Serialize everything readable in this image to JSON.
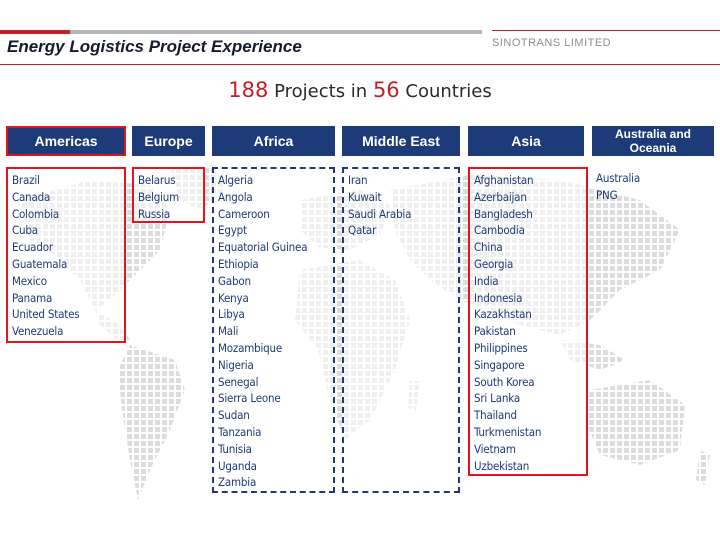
{
  "header": {
    "title": "Energy Logistics Project Experience",
    "company": "SINOTRANS LIMITED"
  },
  "summary": {
    "projects_count": "188",
    "projects_text": "Projects in",
    "countries_count": "56",
    "countries_text": "Countries"
  },
  "colors": {
    "accent_red": "#c41e2a",
    "header_blue": "#1d3b78",
    "highlight_red": "#e2141c",
    "map_gray": "#dcdcdc"
  },
  "regions": [
    {
      "name": "Americas",
      "countries": [
        "Brazil",
        "Canada",
        "Colombia",
        "Cuba",
        "Ecuador",
        "Guatemala",
        "Mexico",
        "Panama",
        "United States",
        "Venezuela"
      ]
    },
    {
      "name": "Europe",
      "countries": [
        "Belarus",
        "Belgium",
        "Russia"
      ]
    },
    {
      "name": "Africa",
      "countries": [
        "Algeria",
        "Angola",
        "Cameroon",
        "Egypt",
        "Equatorial Guinea",
        "Ethiopia",
        "Gabon",
        "Kenya",
        "Libya",
        "Mali",
        "Mozambique",
        "Nigeria",
        "Senegal",
        "Sierra Leone",
        "Sudan",
        "Tanzania",
        "Tunisia",
        "Uganda",
        "Zambia"
      ]
    },
    {
      "name": "Middle East",
      "countries": [
        "Iran",
        "Kuwait",
        "Saudi Arabia",
        "Qatar"
      ]
    },
    {
      "name": "Asia",
      "countries": [
        "Afghanistan",
        "Azerbaijan",
        "Bangladesh",
        "Cambodia",
        "China",
        "Georgia",
        "India",
        "Indonesia",
        "Kazakhstan",
        "Pakistan",
        "Philippines",
        "Singapore",
        "South Korea",
        "Sri Lanka",
        "Thailand",
        "Turkmenistan",
        "Vietnam",
        "Uzbekistan"
      ]
    },
    {
      "name": "Australia and Oceania",
      "countries": [
        "Australia",
        "PNG"
      ]
    }
  ]
}
